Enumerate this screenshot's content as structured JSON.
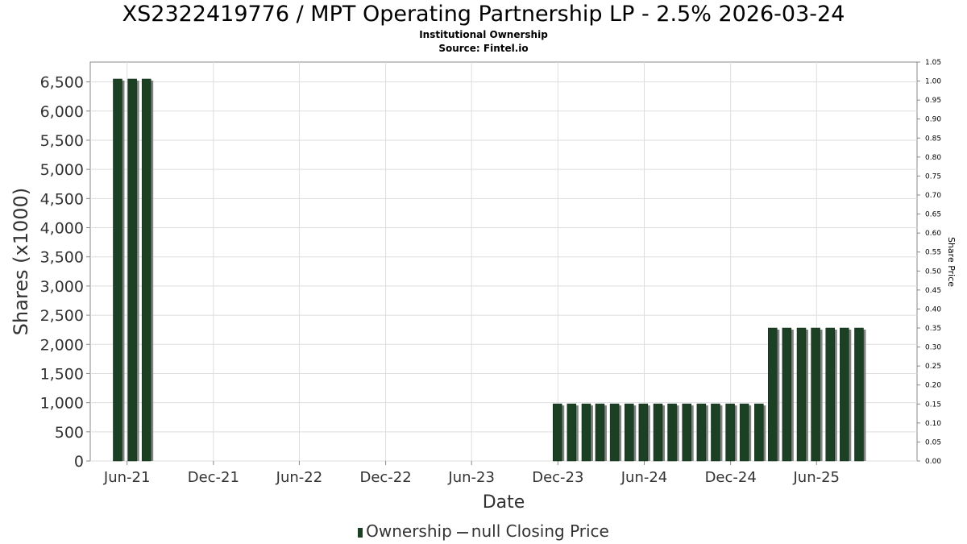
{
  "chart_data": {
    "type": "bar",
    "title": "XS2322419776 / MPT Operating Partnership LP - 2.5% 2026-03-24",
    "subtitle": "Institutional Ownership",
    "source": "Source: Fintel.io",
    "xlabel": "Date",
    "ylabel": "Shares (x1000)",
    "y2label": "Share Price",
    "x_ticks": [
      "Jun-21",
      "Dec-21",
      "Jun-22",
      "Dec-22",
      "Jun-23",
      "Dec-23",
      "Jun-24",
      "Dec-24",
      "Jun-25"
    ],
    "x_tick_dates": [
      "2021-06-01",
      "2021-12-01",
      "2022-06-01",
      "2022-12-01",
      "2023-06-01",
      "2023-12-01",
      "2024-06-01",
      "2024-12-01",
      "2025-06-01"
    ],
    "xlim": [
      "2021-03-15",
      "2025-12-31"
    ],
    "ylim": [
      0,
      6840
    ],
    "y_ticks": [
      0,
      500,
      1000,
      1500,
      2000,
      2500,
      3000,
      3500,
      4000,
      4500,
      5000,
      5500,
      6000,
      6500
    ],
    "y_tick_labels": [
      "0",
      "500",
      "1,000",
      "1,500",
      "2,000",
      "2,500",
      "3,000",
      "3,500",
      "4,000",
      "4,500",
      "5,000",
      "5,500",
      "6,000",
      "6,500"
    ],
    "y2lim": [
      0,
      1.05
    ],
    "y2_tick_labels": [
      "0.00",
      "0.05",
      "0.10",
      "0.15",
      "0.20",
      "0.25",
      "0.30",
      "0.35",
      "0.40",
      "0.45",
      "0.50",
      "0.55",
      "0.60",
      "0.65",
      "0.70",
      "0.75",
      "0.80",
      "0.85",
      "0.90",
      "0.95",
      "1.00",
      "1.05"
    ],
    "grid": true,
    "legend_position": "bottom",
    "legend": [
      "Ownership",
      "null Closing Price"
    ],
    "colors": {
      "bar": "#1c4023",
      "bar_shadow": "#7f8480",
      "grid": "#dddddd",
      "axis": "#888888"
    },
    "series": [
      {
        "name": "Ownership",
        "x": [
          "2021-05-12",
          "2021-06-12",
          "2021-07-12",
          "2023-11-30",
          "2023-12-30",
          "2024-01-30",
          "2024-02-28",
          "2024-03-30",
          "2024-04-30",
          "2024-05-30",
          "2024-06-30",
          "2024-07-30",
          "2024-08-30",
          "2024-09-30",
          "2024-10-30",
          "2024-11-30",
          "2024-12-30",
          "2025-01-30",
          "2025-02-28",
          "2025-03-30",
          "2025-04-30",
          "2025-05-30",
          "2025-06-30",
          "2025-07-30",
          "2025-08-30"
        ],
        "values": [
          6550,
          6550,
          6550,
          980,
          980,
          980,
          980,
          980,
          980,
          980,
          980,
          980,
          980,
          980,
          980,
          980,
          980,
          980,
          2280,
          2280,
          2280,
          2280,
          2280,
          2280,
          2280
        ]
      }
    ]
  }
}
